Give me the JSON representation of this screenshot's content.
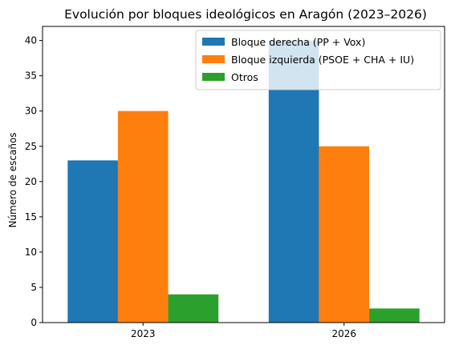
{
  "chart_data": {
    "type": "bar",
    "title": "Evolución por bloques ideológicos en Aragón (2023–2026)",
    "xlabel": "",
    "ylabel": "Número de escaños",
    "categories": [
      "2023",
      "2026"
    ],
    "series": [
      {
        "name": "Bloque derecha (PP + Vox)",
        "values": [
          23,
          40
        ],
        "color": "#1f77b4"
      },
      {
        "name": "Bloque izquierda (PSOE + CHA + IU)",
        "values": [
          30,
          25
        ],
        "color": "#ff7f0e"
      },
      {
        "name": "Otros",
        "values": [
          4,
          2
        ],
        "color": "#2ca02c"
      }
    ],
    "ylim": [
      0,
      42
    ],
    "yticks": [
      0,
      5,
      10,
      15,
      20,
      25,
      30,
      35,
      40
    ],
    "grid": false,
    "legend_position": "top-right"
  }
}
